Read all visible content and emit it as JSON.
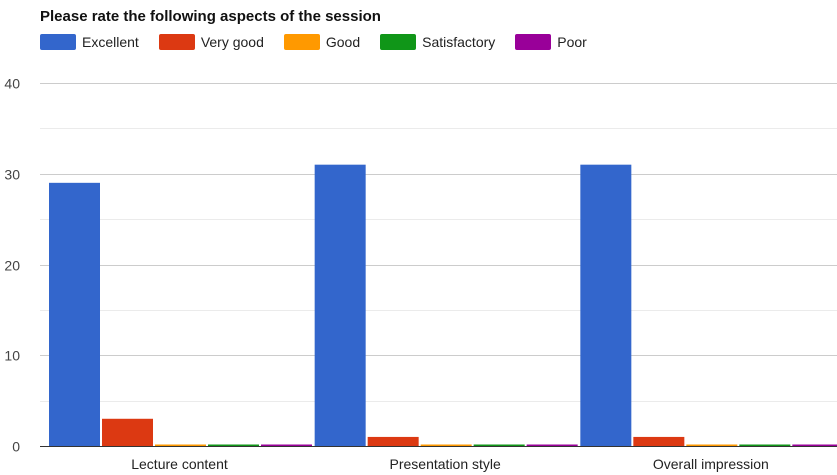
{
  "chart_data": {
    "type": "bar",
    "title": "Please rate the following aspects of the session",
    "categories": [
      "Lecture content",
      "Presentation style",
      "Overall impression"
    ],
    "series": [
      {
        "name": "Excellent",
        "color": "#3366cc",
        "values": [
          29,
          31,
          31
        ]
      },
      {
        "name": "Very good",
        "color": "#dc3912",
        "values": [
          3,
          1,
          1
        ]
      },
      {
        "name": "Good",
        "color": "#ff9900",
        "values": [
          0,
          0,
          0
        ]
      },
      {
        "name": "Satisfactory",
        "color": "#109618",
        "values": [
          0,
          0,
          0
        ]
      },
      {
        "name": "Poor",
        "color": "#990099",
        "values": [
          0,
          0,
          0
        ]
      }
    ],
    "ylim": [
      0,
      40
    ],
    "yticks": [
      0,
      10,
      20,
      30,
      40
    ],
    "grid": true,
    "legend_position": "top-left"
  }
}
